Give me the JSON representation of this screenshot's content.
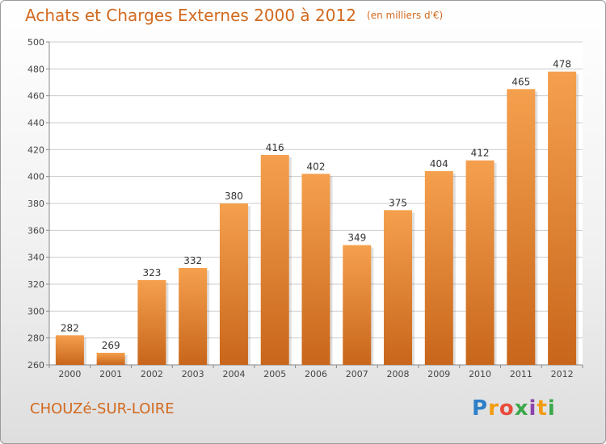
{
  "title": "Achats et Charges Externes 2000 à 2012",
  "unit": "(en milliers d'€)",
  "commune": "CHOUZé-SUR-LOIRE",
  "logo": "Proxiti",
  "colors": {
    "bar_light": "#f5a04e",
    "bar_dark": "#c8661b",
    "title": "#d2691e",
    "grid": "#cccccc"
  },
  "chart_data": {
    "type": "bar",
    "categories": [
      "2000",
      "2001",
      "2002",
      "2003",
      "2004",
      "2005",
      "2006",
      "2007",
      "2008",
      "2009",
      "2010",
      "2011",
      "2012"
    ],
    "values": [
      282,
      269,
      323,
      332,
      380,
      416,
      402,
      349,
      375,
      404,
      412,
      465,
      478
    ],
    "data_labels": [
      "282",
      "269",
      "323",
      "332",
      "380",
      "416",
      "402",
      "349",
      "375",
      "404",
      "412",
      "465",
      "478"
    ],
    "ylim": [
      260,
      500
    ],
    "yticks": [
      260,
      280,
      300,
      320,
      340,
      360,
      380,
      400,
      420,
      440,
      460,
      480,
      500
    ],
    "grid": true,
    "legend": "none"
  }
}
